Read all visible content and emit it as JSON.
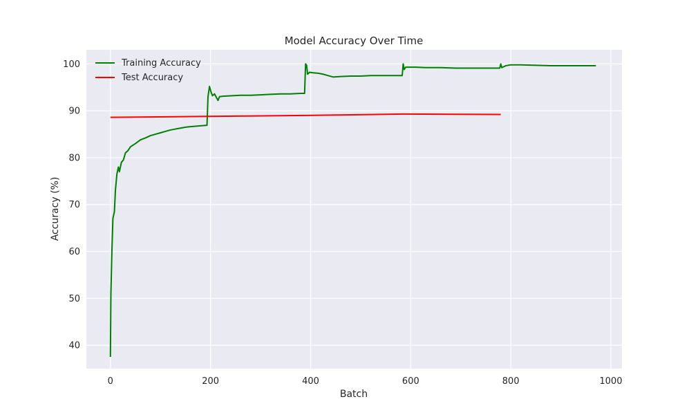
{
  "chart_data": {
    "type": "line",
    "title": "Model Accuracy Over Time",
    "xlabel": "Batch",
    "ylabel": "Accuracy (%)",
    "xlim": [
      -48,
      1022
    ],
    "ylim": [
      35,
      103
    ],
    "xticks": [
      0,
      200,
      400,
      600,
      800,
      1000
    ],
    "yticks": [
      40,
      50,
      60,
      70,
      80,
      90,
      100
    ],
    "grid": true,
    "legend_position": "top-left",
    "background_color": "#eaeaf2",
    "series": [
      {
        "name": "Training Accuracy",
        "color": "#008000",
        "points": [
          [
            0,
            37.5
          ],
          [
            1,
            51
          ],
          [
            3,
            60
          ],
          [
            5,
            67
          ],
          [
            8,
            68.5
          ],
          [
            10,
            73
          ],
          [
            13,
            76.5
          ],
          [
            16,
            78
          ],
          [
            18,
            77
          ],
          [
            22,
            79
          ],
          [
            26,
            79.5
          ],
          [
            30,
            81
          ],
          [
            35,
            81.5
          ],
          [
            40,
            82.3
          ],
          [
            50,
            83
          ],
          [
            60,
            83.8
          ],
          [
            70,
            84.2
          ],
          [
            80,
            84.7
          ],
          [
            90,
            85
          ],
          [
            100,
            85.3
          ],
          [
            110,
            85.6
          ],
          [
            120,
            85.9
          ],
          [
            130,
            86.1
          ],
          [
            140,
            86.3
          ],
          [
            150,
            86.5
          ],
          [
            160,
            86.6
          ],
          [
            170,
            86.7
          ],
          [
            180,
            86.8
          ],
          [
            193,
            86.9
          ],
          [
            195,
            93
          ],
          [
            198,
            95.2
          ],
          [
            201,
            94
          ],
          [
            204,
            93.2
          ],
          [
            208,
            93.6
          ],
          [
            212,
            92.8
          ],
          [
            215,
            92.2
          ],
          [
            218,
            93
          ],
          [
            225,
            93.1
          ],
          [
            240,
            93.2
          ],
          [
            260,
            93.3
          ],
          [
            280,
            93.3
          ],
          [
            300,
            93.4
          ],
          [
            320,
            93.5
          ],
          [
            340,
            93.6
          ],
          [
            360,
            93.6
          ],
          [
            380,
            93.7
          ],
          [
            388,
            93.7
          ],
          [
            390,
            100
          ],
          [
            392,
            99.7
          ],
          [
            394,
            97.8
          ],
          [
            398,
            98.2
          ],
          [
            405,
            98.1
          ],
          [
            415,
            98
          ],
          [
            425,
            97.8
          ],
          [
            435,
            97.5
          ],
          [
            445,
            97.2
          ],
          [
            460,
            97.3
          ],
          [
            480,
            97.4
          ],
          [
            500,
            97.4
          ],
          [
            520,
            97.5
          ],
          [
            540,
            97.5
          ],
          [
            560,
            97.5
          ],
          [
            583,
            97.5
          ],
          [
            585,
            100
          ],
          [
            587,
            98.8
          ],
          [
            590,
            99.3
          ],
          [
            610,
            99.3
          ],
          [
            630,
            99.2
          ],
          [
            660,
            99.2
          ],
          [
            690,
            99.1
          ],
          [
            720,
            99.1
          ],
          [
            750,
            99.1
          ],
          [
            778,
            99.1
          ],
          [
            780,
            100
          ],
          [
            782,
            99.2
          ],
          [
            790,
            99.6
          ],
          [
            800,
            99.8
          ],
          [
            820,
            99.8
          ],
          [
            850,
            99.7
          ],
          [
            880,
            99.6
          ],
          [
            910,
            99.6
          ],
          [
            940,
            99.6
          ],
          [
            970,
            99.6
          ]
        ]
      },
      {
        "name": "Test Accuracy",
        "color": "#ff0000",
        "points": [
          [
            0,
            88.6
          ],
          [
            195,
            88.8
          ],
          [
            390,
            89.0
          ],
          [
            585,
            89.3
          ],
          [
            780,
            89.2
          ]
        ]
      }
    ]
  }
}
